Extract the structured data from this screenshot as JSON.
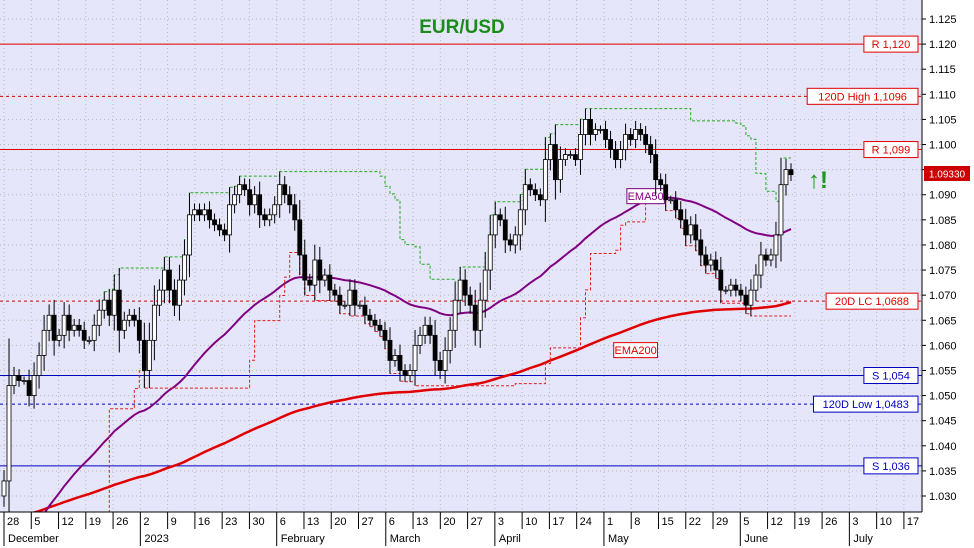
{
  "chart_data": {
    "type": "candlestick",
    "title": "EUR/USD",
    "ylim": [
      1.026,
      1.13
    ],
    "y_ticks": [
      "1.030",
      "1.035",
      "1.040",
      "1.045",
      "1.050",
      "1.055",
      "1.060",
      "1.065",
      "1.070",
      "1.075",
      "1.080",
      "1.085",
      "1.090",
      "1.095",
      "1.100",
      "1.105",
      "1.110",
      "1.115",
      "1.120",
      "1.125"
    ],
    "x_ticks": [
      "28",
      "5",
      "12",
      "19",
      "26",
      "2",
      "9",
      "16",
      "23",
      "30",
      "6",
      "13",
      "20",
      "27",
      "6",
      "13",
      "20",
      "27",
      "3",
      "10",
      "17",
      "24",
      "1",
      "8",
      "15",
      "22",
      "29",
      "5",
      "12",
      "19",
      "26",
      "3",
      "10",
      "17"
    ],
    "months": [
      {
        "label": "December",
        "tick_index": 0
      },
      {
        "label": "2023",
        "tick_index": 5
      },
      {
        "label": "February",
        "tick_index": 10
      },
      {
        "label": "March",
        "tick_index": 14
      },
      {
        "label": "April",
        "tick_index": 18
      },
      {
        "label": "May",
        "tick_index": 22
      },
      {
        "label": "June",
        "tick_index": 27
      },
      {
        "label": "July",
        "tick_index": 31
      }
    ],
    "last_price": "1.09330",
    "price_annotation": "↑!",
    "levels": [
      {
        "label": "R 1,120",
        "value": 1.12,
        "style": "solid",
        "color": "#e00000"
      },
      {
        "label": "120D High 1,1096",
        "value": 1.1096,
        "style": "dashed",
        "color": "#e00000"
      },
      {
        "label": "R 1,099",
        "value": 1.099,
        "style": "solid",
        "color": "#e00000"
      },
      {
        "label": "20D LC 1,0688",
        "value": 1.0688,
        "style": "dashed",
        "color": "#e00000"
      },
      {
        "label": "S 1,054",
        "value": 1.054,
        "style": "solid",
        "color": "#0000c0"
      },
      {
        "label": "120D Low 1,0483",
        "value": 1.0483,
        "style": "dashed",
        "color": "#0000c0"
      },
      {
        "label": "S 1,036",
        "value": 1.036,
        "style": "solid",
        "color": "#0000c0"
      }
    ],
    "ema_labels": [
      {
        "label": "EMA50",
        "color": "#800080"
      },
      {
        "label": "EMA200",
        "color": "#e00000"
      }
    ],
    "candles_start_tick": 0,
    "closes": [
      1.033,
      1.052,
      1.054,
      1.053,
      1.053,
      1.05,
      1.054,
      1.058,
      1.063,
      1.066,
      1.061,
      1.062,
      1.066,
      1.063,
      1.064,
      1.063,
      1.061,
      1.061,
      1.064,
      1.067,
      1.069,
      1.066,
      1.071,
      1.063,
      1.065,
      1.066,
      1.065,
      1.061,
      1.055,
      1.061,
      1.068,
      1.071,
      1.075,
      1.071,
      1.068,
      1.073,
      1.078,
      1.086,
      1.087,
      1.086,
      1.087,
      1.085,
      1.084,
      1.083,
      1.082,
      1.088,
      1.09,
      1.092,
      1.091,
      1.088,
      1.09,
      1.086,
      1.085,
      1.086,
      1.088,
      1.092,
      1.09,
      1.088,
      1.085,
      1.078,
      1.073,
      1.072,
      1.077,
      1.073,
      1.074,
      1.071,
      1.07,
      1.068,
      1.068,
      1.071,
      1.068,
      1.068,
      1.066,
      1.065,
      1.064,
      1.063,
      1.061,
      1.057,
      1.058,
      1.055,
      1.054,
      1.055,
      1.06,
      1.062,
      1.064,
      1.062,
      1.057,
      1.055,
      1.059,
      1.063,
      1.069,
      1.073,
      1.07,
      1.068,
      1.063,
      1.069,
      1.075,
      1.082,
      1.086,
      1.085,
      1.081,
      1.08,
      1.082,
      1.087,
      1.092,
      1.091,
      1.09,
      1.089,
      1.097,
      1.1,
      1.093,
      1.097,
      1.098,
      1.098,
      1.097,
      1.102,
      1.105,
      1.102,
      1.103,
      1.103,
      1.101,
      1.099,
      1.097,
      1.099,
      1.102,
      1.101,
      1.103,
      1.102,
      1.1,
      1.098,
      1.093,
      1.092,
      1.089,
      1.089,
      1.087,
      1.085,
      1.082,
      1.084,
      1.081,
      1.078,
      1.076,
      1.077,
      1.075,
      1.071,
      1.071,
      1.072,
      1.071,
      1.07,
      1.068,
      1.071,
      1.074,
      1.078,
      1.077,
      1.078,
      1.082,
      1.092,
      1.095,
      1.094
    ]
  }
}
